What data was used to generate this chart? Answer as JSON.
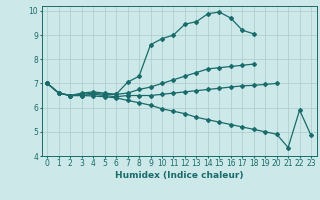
{
  "xlabel": "Humidex (Indice chaleur)",
  "xlim": [
    -0.5,
    23.5
  ],
  "ylim": [
    4,
    10.2
  ],
  "yticks": [
    4,
    5,
    6,
    7,
    8,
    9,
    10
  ],
  "xticks": [
    0,
    1,
    2,
    3,
    4,
    5,
    6,
    7,
    8,
    9,
    10,
    11,
    12,
    13,
    14,
    15,
    16,
    17,
    18,
    19,
    20,
    21,
    22,
    23
  ],
  "background_color": "#cce8e8",
  "grid_color": "#aacccc",
  "line_color": "#1a6b6b",
  "lines": [
    {
      "x": [
        0,
        1,
        2,
        3,
        4,
        5,
        6,
        7,
        8,
        9,
        10,
        11,
        12,
        13,
        14,
        15,
        16,
        17,
        18
      ],
      "y": [
        7.0,
        6.6,
        6.5,
        6.6,
        6.65,
        6.6,
        6.55,
        7.05,
        7.3,
        8.6,
        8.85,
        9.0,
        9.45,
        9.55,
        9.88,
        9.95,
        9.7,
        9.2,
        9.05
      ]
    },
    {
      "x": [
        0,
        1,
        2,
        3,
        4,
        5,
        6,
        7,
        8,
        9,
        10,
        11,
        12,
        13,
        14,
        15,
        16,
        17,
        18
      ],
      "y": [
        7.0,
        6.6,
        6.5,
        6.55,
        6.6,
        6.55,
        6.55,
        6.6,
        6.75,
        6.85,
        7.0,
        7.15,
        7.3,
        7.45,
        7.6,
        7.65,
        7.7,
        7.75,
        7.8
      ]
    },
    {
      "x": [
        0,
        1,
        2,
        3,
        4,
        5,
        6,
        7,
        8,
        9,
        10,
        11,
        12,
        13,
        14,
        15,
        16,
        17,
        18,
        19,
        20
      ],
      "y": [
        7.0,
        6.6,
        6.5,
        6.5,
        6.55,
        6.5,
        6.45,
        6.5,
        6.5,
        6.5,
        6.55,
        6.6,
        6.65,
        6.7,
        6.75,
        6.8,
        6.85,
        6.9,
        6.92,
        6.96,
        7.0
      ]
    },
    {
      "x": [
        0,
        1,
        2,
        3,
        4,
        5,
        6,
        7,
        8,
        9,
        10,
        11,
        12,
        13,
        14,
        15,
        16,
        17,
        18,
        19,
        20,
        21,
        22,
        23
      ],
      "y": [
        7.0,
        6.6,
        6.5,
        6.5,
        6.48,
        6.45,
        6.4,
        6.3,
        6.2,
        6.1,
        5.95,
        5.85,
        5.75,
        5.6,
        5.5,
        5.4,
        5.3,
        5.2,
        5.1,
        5.0,
        4.9,
        4.35,
        5.9,
        4.85
      ]
    }
  ]
}
